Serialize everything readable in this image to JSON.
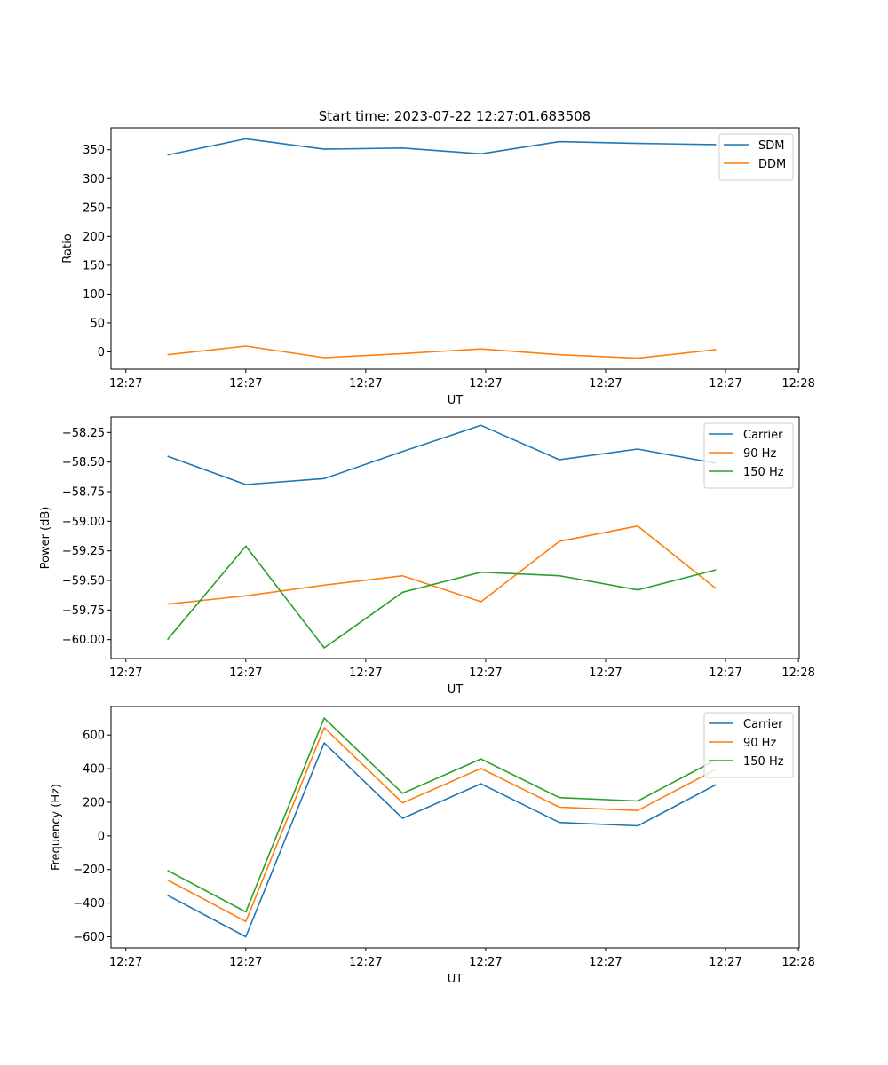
{
  "figure_title": "Start time: 2023-07-22 12:27:01.683508",
  "colors": {
    "blue": "#1f77b4",
    "orange": "#ff7f0e",
    "green": "#2ca02c"
  },
  "chart_data": [
    {
      "type": "line",
      "title": "Start time: 2023-07-22 12:27:01.683508",
      "xlabel": "UT",
      "ylabel": "Ratio",
      "x": [
        1,
        2,
        3,
        4,
        5,
        6,
        7,
        8
      ],
      "xlim": [
        0.28,
        9.06
      ],
      "xticks": [
        0.47,
        2.0,
        3.53,
        5.06,
        6.59,
        8.12,
        9.05
      ],
      "xtick_labels": [
        "12:27",
        "12:27",
        "12:27",
        "12:27",
        "12:27",
        "12:27",
        "12:28"
      ],
      "ylim": [
        -30,
        388
      ],
      "yticks": [
        0,
        50,
        100,
        150,
        200,
        250,
        300,
        350
      ],
      "ytick_labels": [
        "0",
        "50",
        "100",
        "150",
        "200",
        "250",
        "300",
        "350"
      ],
      "legend": "top-right",
      "series": [
        {
          "name": "SDM",
          "color": "#1f77b4",
          "values": [
            341,
            369,
            351,
            353,
            343,
            364,
            361,
            359
          ]
        },
        {
          "name": "DDM",
          "color": "#ff7f0e",
          "values": [
            -5,
            10,
            -10,
            -3,
            5,
            -5,
            -11,
            4
          ]
        }
      ]
    },
    {
      "type": "line",
      "xlabel": "UT",
      "ylabel": "Power (dB)",
      "x": [
        1,
        2,
        3,
        4,
        5,
        6,
        7,
        8
      ],
      "xlim": [
        0.28,
        9.06
      ],
      "xticks": [
        0.47,
        2.0,
        3.53,
        5.06,
        6.59,
        8.12,
        9.05
      ],
      "xtick_labels": [
        "12:27",
        "12:27",
        "12:27",
        "12:27",
        "12:27",
        "12:27",
        "12:28"
      ],
      "ylim": [
        -60.16,
        -58.12
      ],
      "yticks": [
        -60.0,
        -59.75,
        -59.5,
        -59.25,
        -59.0,
        -58.75,
        -58.5,
        -58.25
      ],
      "ytick_labels": [
        "−60.00",
        "−59.75",
        "−59.50",
        "−59.25",
        "−59.00",
        "−58.75",
        "−58.50",
        "−58.25"
      ],
      "legend": "top-right",
      "series": [
        {
          "name": "Carrier",
          "color": "#1f77b4",
          "values": [
            -58.45,
            -58.69,
            -58.64,
            -58.41,
            -58.19,
            -58.48,
            -58.39,
            -58.51
          ]
        },
        {
          "name": "90 Hz",
          "color": "#ff7f0e",
          "values": [
            -59.7,
            -59.63,
            -59.54,
            -59.46,
            -59.68,
            -59.17,
            -59.04,
            -59.57
          ]
        },
        {
          "name": "150 Hz",
          "color": "#2ca02c",
          "values": [
            -60.0,
            -59.21,
            -60.07,
            -59.6,
            -59.43,
            -59.46,
            -59.58,
            -59.41
          ]
        }
      ]
    },
    {
      "type": "line",
      "xlabel": "UT",
      "ylabel": "Frequency (Hz)",
      "x": [
        1,
        2,
        3,
        4,
        5,
        6,
        7,
        8
      ],
      "xlim": [
        0.28,
        9.06
      ],
      "xticks": [
        0.47,
        2.0,
        3.53,
        5.06,
        6.59,
        8.12,
        9.05
      ],
      "xtick_labels": [
        "12:27",
        "12:27",
        "12:27",
        "12:27",
        "12:27",
        "12:27",
        "12:28"
      ],
      "ylim": [
        -666,
        770
      ],
      "yticks": [
        -600,
        -400,
        -200,
        0,
        200,
        400,
        600
      ],
      "ytick_labels": [
        "−600",
        "−400",
        "−200",
        "0",
        "200",
        "400",
        "600"
      ],
      "legend": "top-right",
      "series": [
        {
          "name": "Carrier",
          "color": "#1f77b4",
          "values": [
            -353,
            -600,
            553,
            105,
            310,
            80,
            60,
            305
          ]
        },
        {
          "name": "90 Hz",
          "color": "#ff7f0e",
          "values": [
            -262,
            -509,
            644,
            196,
            401,
            171,
            151,
            396
          ]
        },
        {
          "name": "150 Hz",
          "color": "#2ca02c",
          "values": [
            -205,
            -452,
            701,
            253,
            458,
            228,
            208,
            453
          ]
        }
      ]
    }
  ]
}
